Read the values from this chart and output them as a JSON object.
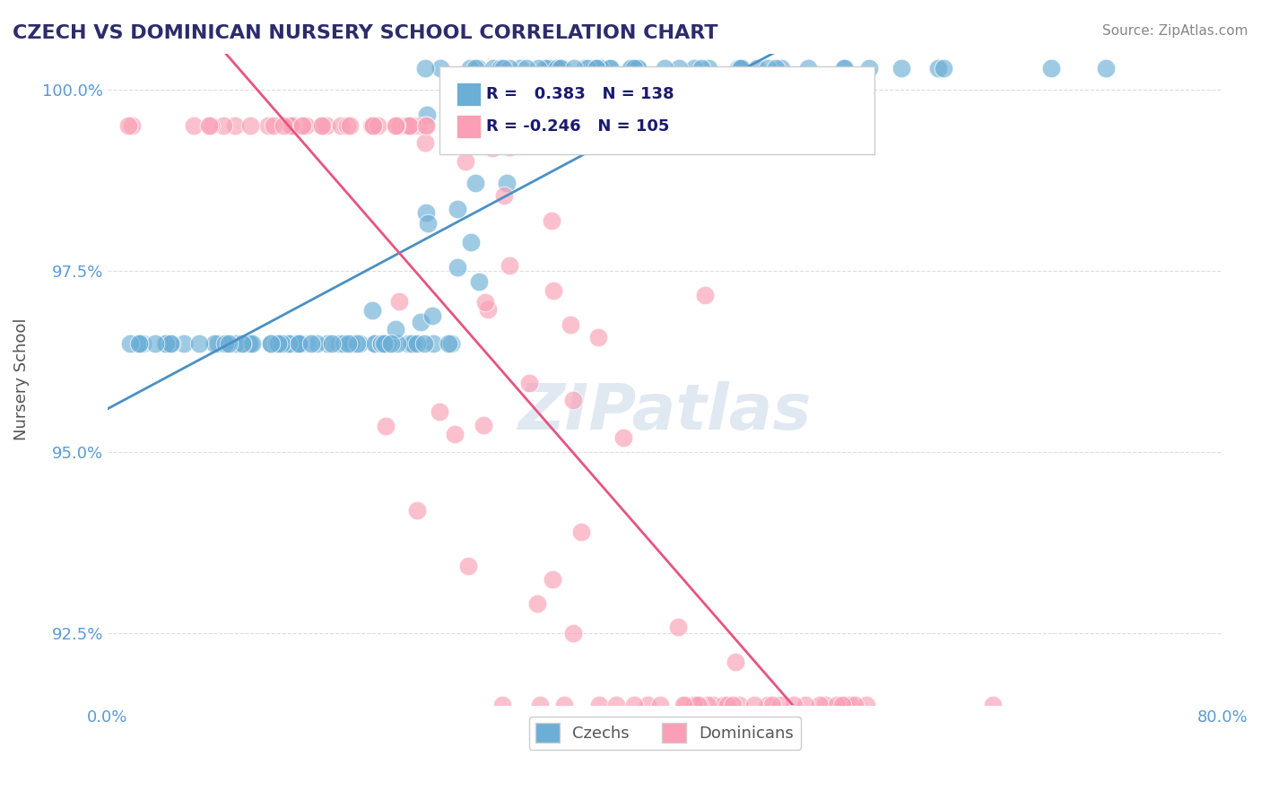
{
  "title": "CZECH VS DOMINICAN NURSERY SCHOOL CORRELATION CHART",
  "source": "Source: ZipAtlas.com",
  "xlabel": "",
  "ylabel": "Nursery School",
  "xlim": [
    0.0,
    0.8
  ],
  "ylim": [
    0.915,
    1.005
  ],
  "yticks": [
    0.925,
    0.95,
    0.975,
    1.0
  ],
  "ytick_labels": [
    "92.5%",
    "95.0%",
    "97.5%",
    "100.0%"
  ],
  "xticks": [
    0.0,
    0.8
  ],
  "xtick_labels": [
    "0.0%",
    "80.0%"
  ],
  "czech_color": "#6baed6",
  "dominican_color": "#fa9fb5",
  "czech_r": 0.383,
  "czech_n": 138,
  "dominican_r": -0.246,
  "dominican_n": 105,
  "trend_blue": "#4a90c4",
  "trend_pink": "#e75480",
  "legend_label_czech": "Czechs",
  "legend_label_dominican": "Dominicans",
  "watermark": "ZIPatlas",
  "background_color": "#ffffff",
  "grid_color": "#dddddd"
}
